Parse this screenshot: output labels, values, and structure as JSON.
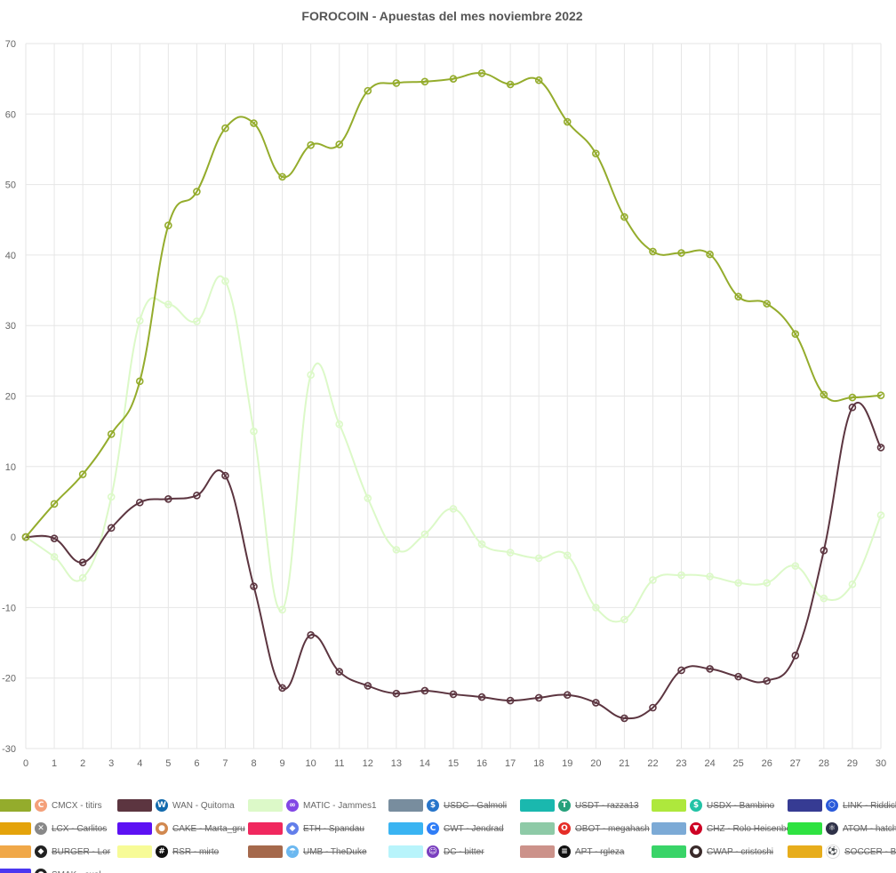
{
  "chart_data": {
    "type": "line",
    "title": "FOROCOIN - Apuestas del mes noviembre 2022",
    "xlabel": "",
    "ylabel": "",
    "x": [
      0,
      1,
      2,
      3,
      4,
      5,
      6,
      7,
      8,
      9,
      10,
      11,
      12,
      13,
      14,
      15,
      16,
      17,
      18,
      19,
      20,
      21,
      22,
      23,
      24,
      25,
      26,
      27,
      28,
      29,
      30
    ],
    "ylim": [
      -30,
      70
    ],
    "yticks": [
      -30,
      -20,
      -10,
      0,
      10,
      20,
      30,
      40,
      50,
      60,
      70
    ],
    "grid": true,
    "legend_position": "bottom",
    "series": [
      {
        "name": "CMCX - titirs",
        "color": "#94ac2c",
        "icon": "cmcx-icon",
        "values": [
          0,
          4.7,
          8.9,
          14.6,
          22.1,
          44.2,
          49.0,
          58.0,
          58.7,
          51.1,
          55.6,
          55.7,
          63.3,
          64.4,
          64.6,
          65.0,
          65.8,
          64.2,
          64.8,
          58.9,
          54.4,
          45.4,
          40.5,
          40.3,
          40.1,
          34.1,
          33.1,
          28.8,
          20.2,
          19.8,
          20.1
        ]
      },
      {
        "name": "WAN - Quitoma",
        "color": "#5c3540",
        "icon": "wan-icon",
        "values": [
          0,
          -0.2,
          -3.6,
          1.3,
          4.9,
          5.4,
          5.9,
          8.7,
          -7.0,
          -21.4,
          -13.9,
          -19.1,
          -21.1,
          -22.2,
          -21.8,
          -22.3,
          -22.7,
          -23.2,
          -22.8,
          -22.4,
          -23.5,
          -25.7,
          -24.2,
          -18.9,
          -18.7,
          -19.8,
          -20.4,
          -16.8,
          -1.9,
          18.4,
          12.7
        ]
      },
      {
        "name": "MATIC - Jammes1",
        "color": "#dcf9c8",
        "icon": "matic-icon",
        "values": [
          0,
          -2.8,
          -5.8,
          5.7,
          30.7,
          33.0,
          30.6,
          36.3,
          15.0,
          -10.3,
          23.0,
          16.0,
          5.5,
          -1.8,
          0.4,
          4.0,
          -1.0,
          -2.2,
          -3.0,
          -2.6,
          -10.0,
          -11.7,
          -6.1,
          -5.4,
          -5.6,
          -6.5,
          -6.5,
          -4.1,
          -8.7,
          -6.7,
          3.1
        ]
      }
    ],
    "legend": [
      {
        "name": "CMCX - titirs",
        "color": "#94ac2c",
        "icon": "cmcx-icon",
        "icon_color": "#f4a07a",
        "icon_glyph": "C",
        "hidden": false
      },
      {
        "name": "WAN - Quitoma",
        "color": "#5c3540",
        "icon": "wan-icon",
        "icon_color": "#136aad",
        "icon_glyph": "W",
        "hidden": false
      },
      {
        "name": "MATIC - Jammes1",
        "color": "#dcf9c8",
        "icon": "matic-icon",
        "icon_color": "#8247e5",
        "icon_glyph": "∞",
        "hidden": false
      },
      {
        "name": "USDC - Galmoli",
        "color": "#788d9e",
        "icon": "usdc-icon",
        "icon_color": "#2775ca",
        "icon_glyph": "$",
        "hidden": true
      },
      {
        "name": "USDT - razza13",
        "color": "#1ab8ae",
        "icon": "usdt-icon",
        "icon_color": "#26a17b",
        "icon_glyph": "T",
        "hidden": true
      },
      {
        "name": "USDX - Bambino",
        "color": "#aee83c",
        "icon": "usdx-icon",
        "icon_color": "#22c3a6",
        "icon_glyph": "$",
        "hidden": true
      },
      {
        "name": "LINK - Riddick",
        "color": "#363b93",
        "icon": "link-icon",
        "icon_color": "#2a5ada",
        "icon_glyph": "⬡",
        "hidden": true
      },
      {
        "name": "LCX - Carlitos",
        "color": "#e4a30b",
        "icon": "lcx-icon",
        "icon_color": "#888888",
        "icon_glyph": "✕",
        "hidden": true
      },
      {
        "name": "CAKE - Marta_gru",
        "color": "#5c11f3",
        "icon": "cake-icon",
        "icon_color": "#d1884f",
        "icon_glyph": "●",
        "hidden": true
      },
      {
        "name": "ETH - Spandau",
        "color": "#f0285e",
        "icon": "eth-icon",
        "icon_color": "#627eea",
        "icon_glyph": "◆",
        "hidden": true
      },
      {
        "name": "CWT - Jendrad",
        "color": "#3ab4f2",
        "icon": "cwt-icon",
        "icon_color": "#2f7df6",
        "icon_glyph": "C",
        "hidden": true
      },
      {
        "name": "OBOT - megahash",
        "color": "#8ecaa7",
        "icon": "obot-icon",
        "icon_color": "#e52d27",
        "icon_glyph": "O",
        "hidden": true
      },
      {
        "name": "CHZ - Rolo Heisenberg",
        "color": "#7caad6",
        "icon": "chz-icon",
        "icon_color": "#cd0124",
        "icon_glyph": "▼",
        "hidden": true
      },
      {
        "name": "ATOM - hatch",
        "color": "#2ee241",
        "icon": "atom-icon",
        "icon_color": "#2e3148",
        "icon_glyph": "⚛",
        "hidden": true
      },
      {
        "name": "BURGER - Lor",
        "color": "#f0a848",
        "icon": "burger-icon",
        "icon_color": "#222222",
        "icon_glyph": "◆",
        "hidden": true
      },
      {
        "name": "RSR - mirto",
        "color": "#f7fb97",
        "icon": "rsr-icon",
        "icon_color": "#111111",
        "icon_glyph": "#",
        "hidden": true
      },
      {
        "name": "UMB - TheDuke",
        "color": "#a5694c",
        "icon": "umb-icon",
        "icon_color": "#6cb8f0",
        "icon_glyph": "☂",
        "hidden": true
      },
      {
        "name": "DC - bitter",
        "color": "#b8f4fb",
        "icon": "dc-icon",
        "icon_color": "#7a3fbf",
        "icon_glyph": "☺",
        "hidden": true
      },
      {
        "name": "APT - rgleza",
        "color": "#cc928a",
        "icon": "apt-icon",
        "icon_color": "#111111",
        "icon_glyph": "≡",
        "hidden": true
      },
      {
        "name": "CWAP - cristoshi",
        "color": "#39d468",
        "icon": "cwap-icon",
        "icon_color": "#3a2a2a",
        "icon_glyph": "●",
        "hidden": true
      },
      {
        "name": "SOCCER - Benjaker",
        "color": "#e7ad1c",
        "icon": "soccer-icon",
        "icon_color": "#ffffff",
        "icon_glyph": "⚽",
        "hidden": true
      },
      {
        "name": "SMAK - axel",
        "color": "#4b37f0",
        "icon": "smak-icon",
        "icon_color": "#222222",
        "icon_glyph": "●",
        "hidden": true
      }
    ]
  }
}
